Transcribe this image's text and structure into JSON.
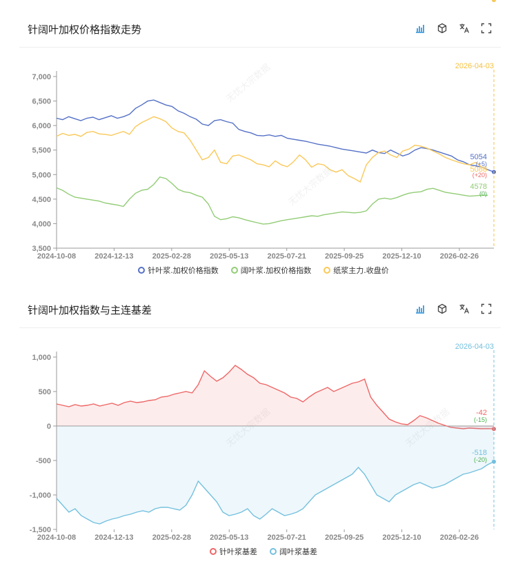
{
  "panel1": {
    "title": "针阔叶加权价格指数走势",
    "icons": [
      "bar-chart-icon",
      "cube-icon",
      "translate-icon",
      "fullscreen-icon"
    ]
  },
  "panel2": {
    "title": "针阔叶加权指数与主连基差",
    "icons": [
      "bar-chart-icon",
      "cube-icon",
      "translate-icon",
      "fullscreen-icon"
    ]
  },
  "watermark": "无忧大宗数据",
  "chart_data": [
    {
      "type": "line",
      "title": "针阔叶加权价格指数走势",
      "x_start": "2024-10-08",
      "x_end": "2026-04-03",
      "x_ticks": [
        "2024-10-08",
        "2024-12-13",
        "2025-02-28",
        "2025-05-13",
        "2025-07-21",
        "2025-09-25",
        "2025-12-10",
        "2026-02-26"
      ],
      "y_ticks": [
        "3,500",
        "4,000",
        "4,500",
        "5,000",
        "5,500",
        "6,000",
        "6,500",
        "7,000"
      ],
      "ylim": [
        3500,
        7000
      ],
      "marker_date": "2026-04-03",
      "grid": false,
      "legend_position": "bottom",
      "series": [
        {
          "name": "针叶浆.加权价格指数",
          "color": "#5470c6",
          "end_label": "5054",
          "end_change": "(+5)",
          "values": [
            6150,
            6120,
            6180,
            6140,
            6100,
            6150,
            6170,
            6120,
            6160,
            6200,
            6150,
            6180,
            6230,
            6350,
            6420,
            6500,
            6520,
            6470,
            6420,
            6390,
            6300,
            6250,
            6180,
            6130,
            6030,
            6000,
            6100,
            6120,
            6080,
            6050,
            5920,
            5880,
            5850,
            5800,
            5790,
            5810,
            5780,
            5800,
            5740,
            5720,
            5700,
            5680,
            5650,
            5620,
            5600,
            5580,
            5550,
            5520,
            5500,
            5480,
            5460,
            5440,
            5500,
            5450,
            5430,
            5500,
            5440,
            5380,
            5420,
            5500,
            5550,
            5530,
            5500,
            5460,
            5420,
            5380,
            5300,
            5260,
            5200,
            5180,
            5150,
            5100,
            5054
          ]
        },
        {
          "name": "阔叶浆.加权价格指数",
          "color": "#91cc75",
          "end_label": "4578",
          "end_change": "(0)",
          "values": [
            4730,
            4680,
            4600,
            4540,
            4520,
            4500,
            4480,
            4460,
            4420,
            4400,
            4380,
            4350,
            4500,
            4620,
            4680,
            4700,
            4800,
            4950,
            4920,
            4820,
            4700,
            4650,
            4630,
            4580,
            4540,
            4400,
            4150,
            4080,
            4100,
            4140,
            4120,
            4080,
            4050,
            4020,
            3990,
            4000,
            4030,
            4060,
            4080,
            4100,
            4120,
            4140,
            4160,
            4150,
            4180,
            4200,
            4220,
            4240,
            4230,
            4220,
            4230,
            4260,
            4400,
            4500,
            4520,
            4500,
            4530,
            4580,
            4620,
            4640,
            4650,
            4700,
            4720,
            4680,
            4640,
            4620,
            4600,
            4580,
            4560,
            4570,
            4580,
            4578
          ]
        },
        {
          "name": "纸浆主力.收盘价",
          "color": "#fac858",
          "end_label": "5088",
          "end_change": "(+20)",
          "values": [
            5780,
            5840,
            5800,
            5820,
            5780,
            5860,
            5880,
            5830,
            5820,
            5800,
            5840,
            5880,
            5820,
            5980,
            6060,
            6120,
            6180,
            6140,
            6080,
            5950,
            5880,
            5850,
            5700,
            5500,
            5300,
            5350,
            5500,
            5250,
            5220,
            5380,
            5400,
            5350,
            5300,
            5220,
            5200,
            5160,
            5280,
            5200,
            5160,
            5260,
            5400,
            5300,
            5150,
            5220,
            5200,
            5100,
            5050,
            5100,
            4980,
            4920,
            4850,
            5200,
            5350,
            5450,
            5480,
            5400,
            5350,
            5480,
            5520,
            5600,
            5580,
            5540,
            5480,
            5420,
            5350,
            5300,
            5260,
            5220,
            5200,
            5250,
            5150,
            5088
          ]
        }
      ]
    },
    {
      "type": "area",
      "title": "针阔叶加权指数与主连基差",
      "x_start": "2024-10-08",
      "x_end": "2026-04-03",
      "x_ticks": [
        "2024-10-08",
        "2024-12-13",
        "2025-02-28",
        "2025-05-13",
        "2025-07-21",
        "2025-09-25",
        "2025-12-10",
        "2026-02-26"
      ],
      "y_ticks": [
        "-1,500",
        "-1,000",
        "-500",
        "0",
        "500",
        "1,000"
      ],
      "ylim": [
        -1500,
        1000
      ],
      "marker_date": "2026-04-03",
      "grid": false,
      "legend_position": "bottom",
      "series": [
        {
          "name": "针叶浆基差",
          "color": "#ee6666",
          "end_label": "-42",
          "end_change": "(-15)",
          "values": [
            320,
            300,
            280,
            310,
            290,
            300,
            320,
            290,
            310,
            330,
            300,
            340,
            360,
            340,
            350,
            370,
            380,
            420,
            430,
            460,
            480,
            500,
            480,
            600,
            800,
            720,
            650,
            700,
            780,
            880,
            820,
            750,
            700,
            620,
            600,
            560,
            520,
            480,
            420,
            400,
            350,
            420,
            480,
            520,
            560,
            500,
            540,
            580,
            620,
            640,
            680,
            420,
            300,
            200,
            100,
            60,
            30,
            20,
            80,
            150,
            120,
            80,
            40,
            10,
            -20,
            -30,
            -40,
            -30,
            -35,
            -40,
            -38,
            -42
          ]
        },
        {
          "name": "阔叶浆基差",
          "color": "#73c0de",
          "end_label": "-518",
          "end_change": "(-20)",
          "values": [
            -1050,
            -1150,
            -1250,
            -1200,
            -1300,
            -1350,
            -1400,
            -1420,
            -1380,
            -1350,
            -1330,
            -1300,
            -1280,
            -1250,
            -1230,
            -1250,
            -1200,
            -1180,
            -1180,
            -1200,
            -1220,
            -1150,
            -1000,
            -800,
            -900,
            -1000,
            -1100,
            -1250,
            -1300,
            -1280,
            -1250,
            -1200,
            -1300,
            -1350,
            -1280,
            -1200,
            -1250,
            -1300,
            -1280,
            -1250,
            -1200,
            -1100,
            -1000,
            -950,
            -900,
            -850,
            -800,
            -750,
            -700,
            -600,
            -700,
            -850,
            -1000,
            -1050,
            -1100,
            -1000,
            -950,
            -900,
            -850,
            -820,
            -860,
            -900,
            -880,
            -850,
            -800,
            -750,
            -700,
            -680,
            -650,
            -620,
            -560,
            -518
          ]
        }
      ]
    }
  ]
}
